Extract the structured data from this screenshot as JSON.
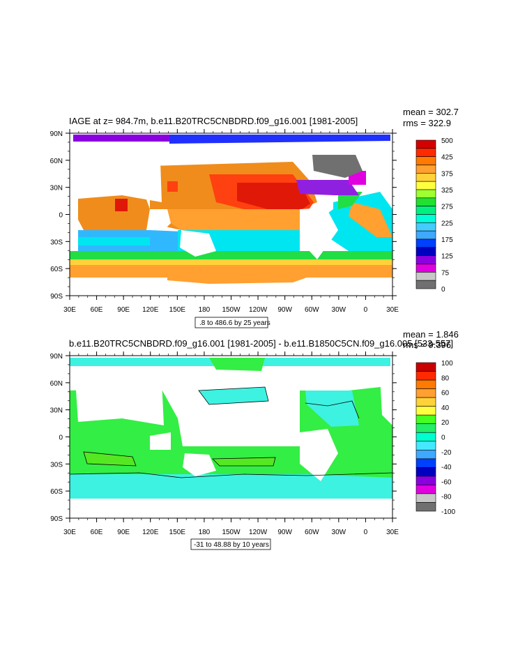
{
  "panels": [
    {
      "title": "IAGE at z= 984.7m, b.e11.B20TRC5CNBDRD.f09_g16.001 [1981-2005]",
      "stats": [
        "mean = 302.7",
        "rms = 322.9"
      ],
      "range_label": ".8 to 486.6 by 25 years",
      "colorbar_labels": [
        "500",
        "425",
        "375",
        "325",
        "275",
        "225",
        "175",
        "125",
        "75",
        "0"
      ],
      "colorbar_colors": [
        "#d40000",
        "#ff2a00",
        "#ff7a00",
        "#ffa030",
        "#ffd23a",
        "#ffff40",
        "#a0ff30",
        "#22e030",
        "#00f080",
        "#00ffd8",
        "#44ccff",
        "#3fa8ff",
        "#0040ff",
        "#0000c0",
        "#8a00e0",
        "#e000e0",
        "#c8c8c8",
        "#707070"
      ]
    },
    {
      "title": "b.e11.B20TRC5CNBDRD.f09_g16.001 [1981-2005] - b.e11.B1850C5CN.f09_g16.005 [533-557]",
      "stats": [
        "mean = 1.846",
        "rms = 9.396"
      ],
      "range_label": "-31 to 48.88 by 10 years",
      "colorbar_labels": [
        "100",
        "80",
        "60",
        "40",
        "20",
        "0",
        "-20",
        "-40",
        "-60",
        "-80",
        "-100"
      ],
      "colorbar_colors": [
        "#c80000",
        "#ff2a00",
        "#ff7a00",
        "#ffa030",
        "#ffd23a",
        "#ffff40",
        "#44ff20",
        "#22ee66",
        "#00ffd0",
        "#44e8ff",
        "#3fa8ff",
        "#0040ff",
        "#0000c0",
        "#8a00e0",
        "#e000e0",
        "#c8c8c8",
        "#707070"
      ]
    }
  ],
  "axes": {
    "lat_labels": [
      "90N",
      "60N",
      "30N",
      "0",
      "30S",
      "60S",
      "90S"
    ],
    "lon_labels": [
      "30E",
      "60E",
      "90E",
      "120E",
      "150E",
      "180",
      "150W",
      "120W",
      "90W",
      "60W",
      "30W",
      "0",
      "30E"
    ]
  },
  "colors": {
    "land": "#ffffff",
    "ocean_top": "#f08c1c",
    "ocean_bottom": "#33ee44",
    "contour": "#000000"
  }
}
